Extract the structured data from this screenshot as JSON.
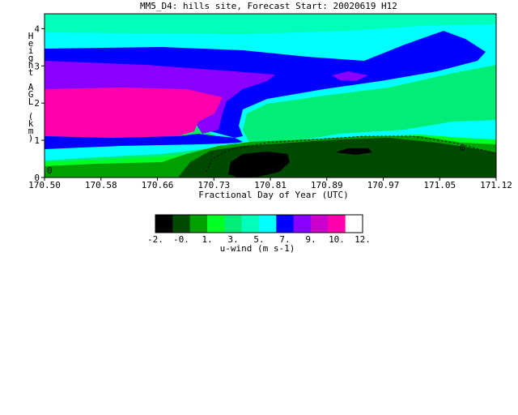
{
  "chart_data": {
    "type": "heatmap",
    "title": "MM5_D4: hills site,  Forecast Start: 20020619 H12",
    "xlabel": "Fractional Day of Year (UTC)",
    "ylabel": "Height AGL (km)",
    "xlim": [
      170.5,
      171.12
    ],
    "ylim": [
      0,
      4.4
    ],
    "x_ticks": [
      "170.50",
      "170.58",
      "170.66",
      "170.73",
      "170.81",
      "170.89",
      "170.97",
      "171.05",
      "171.12"
    ],
    "y_ticks": [
      "0",
      "1",
      "2",
      "3",
      "4"
    ],
    "contour_label": "0",
    "colorbar": {
      "label": "u-wind (m s-1)",
      "tick_labels": [
        "-2.",
        "-0.",
        "1.",
        "3.",
        "5.",
        "7.",
        "9.",
        "10.",
        "12."
      ],
      "levels": [
        -2,
        -1,
        0,
        1,
        2,
        3,
        4,
        5,
        6,
        7,
        8,
        9,
        10,
        11,
        12
      ],
      "colors": [
        "#000000",
        "#004a00",
        "#00a000",
        "#00ff22",
        "#00ee77",
        "#00ffbb",
        "#00ffff",
        "#0000ff",
        "#8a00ff",
        "#cc00cc",
        "#ff00aa",
        "#ffffff"
      ]
    },
    "bands_description": [
      {
        "range": "< -1",
        "color": "#000000"
      },
      {
        "range": "-1 to 0",
        "color": "#004a00"
      },
      {
        "range": "0 to 1",
        "color": "#00a000"
      },
      {
        "range": "1 to 2",
        "color": "#00ff22"
      },
      {
        "range": "2 to 3",
        "color": "#00ee77"
      },
      {
        "range": "3 to 4",
        "color": "#00ffbb"
      },
      {
        "range": "4 to 5",
        "color": "#00ffff"
      },
      {
        "range": "5 to 7",
        "color": "#0000ff"
      },
      {
        "range": "7 to 9",
        "color": "#8a00ff"
      },
      {
        "range": "> 9",
        "color": "#ff00aa"
      }
    ]
  }
}
